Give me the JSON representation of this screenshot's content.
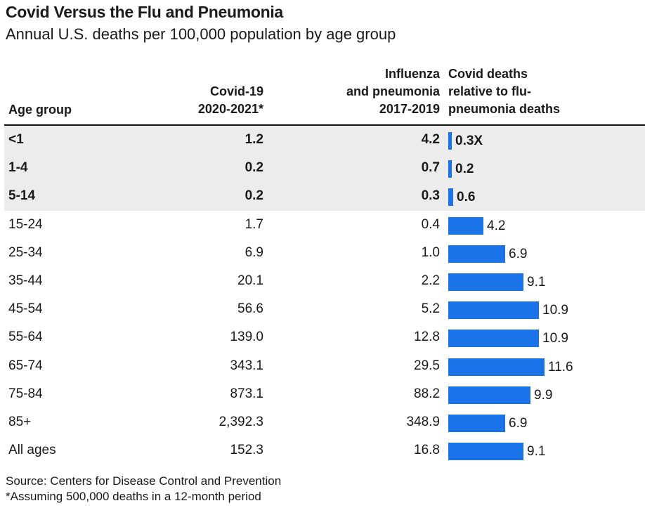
{
  "title": "Covid Versus the Flu and Pneumonia",
  "subtitle": "Annual U.S. deaths per 100,000 population by age group",
  "headers": {
    "age": "Age group",
    "covid": [
      "Covid-19",
      "2020-2021*"
    ],
    "flu": [
      "Influenza",
      "and pneumonia",
      "2017-2019"
    ],
    "ratio": [
      "Covid deaths",
      "relative to flu-",
      "pneumonia deaths"
    ]
  },
  "chart_data": {
    "type": "table",
    "ratio_max": 11.6,
    "bar_color": "#1a73e8",
    "highlight_color": "#ececec",
    "rows": [
      {
        "age": "<1",
        "covid": "1.2",
        "flu": "4.2",
        "ratio": 0.3,
        "ratio_label": "0.3X",
        "bold": true
      },
      {
        "age": "1-4",
        "covid": "0.2",
        "flu": "0.7",
        "ratio": 0.2,
        "ratio_label": "0.2",
        "bold": true
      },
      {
        "age": "5-14",
        "covid": "0.2",
        "flu": "0.3",
        "ratio": 0.6,
        "ratio_label": "0.6",
        "bold": true
      },
      {
        "age": "15-24",
        "covid": "1.7",
        "flu": "0.4",
        "ratio": 4.2,
        "ratio_label": "4.2",
        "bold": false
      },
      {
        "age": "25-34",
        "covid": "6.9",
        "flu": "1.0",
        "ratio": 6.9,
        "ratio_label": "6.9",
        "bold": false
      },
      {
        "age": "35-44",
        "covid": "20.1",
        "flu": "2.2",
        "ratio": 9.1,
        "ratio_label": "9.1",
        "bold": false
      },
      {
        "age": "45-54",
        "covid": "56.6",
        "flu": "5.2",
        "ratio": 10.9,
        "ratio_label": "10.9",
        "bold": false
      },
      {
        "age": "55-64",
        "covid": "139.0",
        "flu": "12.8",
        "ratio": 10.9,
        "ratio_label": "10.9",
        "bold": false
      },
      {
        "age": "65-74",
        "covid": "343.1",
        "flu": "29.5",
        "ratio": 11.6,
        "ratio_label": "11.6",
        "bold": false
      },
      {
        "age": "75-84",
        "covid": "873.1",
        "flu": "88.2",
        "ratio": 9.9,
        "ratio_label": "9.9",
        "bold": false
      },
      {
        "age": "85+",
        "covid": "2,392.3",
        "flu": "348.9",
        "ratio": 6.9,
        "ratio_label": "6.9",
        "bold": false
      },
      {
        "age": "All ages",
        "covid": "152.3",
        "flu": "16.8",
        "ratio": 9.1,
        "ratio_label": "9.1",
        "bold": false
      }
    ]
  },
  "footer": {
    "source": "Source: Centers for Disease Control and Prevention",
    "note": "*Assuming 500,000 deaths in a 12-month period"
  }
}
